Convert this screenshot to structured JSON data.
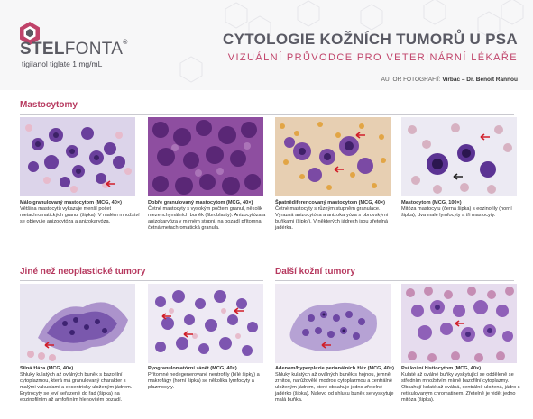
{
  "brand": {
    "name_bold": "STEL",
    "name_light": "FONTA",
    "reg": "®",
    "subline": "tigilanol tiglate 1 mg/mL"
  },
  "header": {
    "title": "CYTOLOGIE KOŽNÍCH TUMORŮ U PSA",
    "subtitle": "VIZUÁLNÍ PRŮVODCE PRO VETERINÁRNÍ LÉKAŘE",
    "credit_label": "AUTOR FOTOGRAFIÍ:",
    "credit_value": "Virbac – Dr. Benoit Rannou"
  },
  "sections": {
    "mast": "Mastocytomy",
    "other": "Jiné než neoplastické tumory",
    "skin": "Další kožní tumory"
  },
  "colors": {
    "accent": "#b6385e",
    "title_gray": "#5a5a64",
    "arrow": "#d11f2a"
  },
  "photos": [
    {
      "title": "Málo granulovaný mastocytom (MCG, 40×)",
      "text": "Většina mastocytů vykazuje menší počet metachromatických granul (šipka). V malém množství se objevuje anizocytóza a anizokaryóza."
    },
    {
      "title": "Dobře granulovaný mastocytom (MCG, 40×)",
      "text": "Četné mastocyty s vysokým počtem granul, několik mezenchymálních buněk (fibroblasty). Anizocytóza a anizokaryóza v mírném stupni, na pozadí přítomna četná metachromatická granula."
    },
    {
      "title": "Špatnědiferencovaný mastocytom (MCG, 40×)",
      "text": "Četné mastocyty s různým stupněm granulace. Výrazná anizocytóza a anizokaryóza s obrovskými buňkami (šipky). V některých jádrech jsou zřetelná jadérka."
    },
    {
      "title": "Mastocytom (MCG, 100×)",
      "text": "Mitóza mastocytu (černá šipka) s eozinofily (horní šipka), dva malé lymfocyty a tři mastocyty."
    },
    {
      "title": "Silná žláza (MCG, 40×)",
      "text": "Shluky kulatých až oválných buněk s bazofilní cytoplazmou, která má granulovaný charakter s malými vakuolami a excentricky uloženým jádrem. Erytrocyty se jeví seřazené do řad (šipka) na eozinofilním až amfofilním hlenovitém pozadí."
    },
    {
      "title": "Pyogranulomatózní zánět (MCG, 40×)",
      "text": "Přítomné nedegenerované neutrofily (bílé šipky) a makrofágy (horní šipka) se několika lymfocyty a plazmocyty."
    },
    {
      "title": "Adenom/hyperplazie perianálních žláz (MCG, 40×)",
      "text": "Shluky kulatých až oválných buněk s hojnou, jemně zrnitou, narůžovělé modrou cytoplazmou a centrálně uloženým jádrem, které obsahuje jedno zřetelné jadérko (šipka). Nalevo od shluku buněk se vyskytuje malá buňka."
    },
    {
      "title": "Psí kožní histiocytom (MCG, 40×)",
      "text": "Kulaté až oválné buňky vyskytující se odděleně se středním množstvím mírně bazofilní cytoplazmy. Obsahují kulaté až oválná, centrálně uložená, jádro s retikulovaným chromatinem. Zřetelně je vidět jedno mitóza (šipka)."
    }
  ]
}
